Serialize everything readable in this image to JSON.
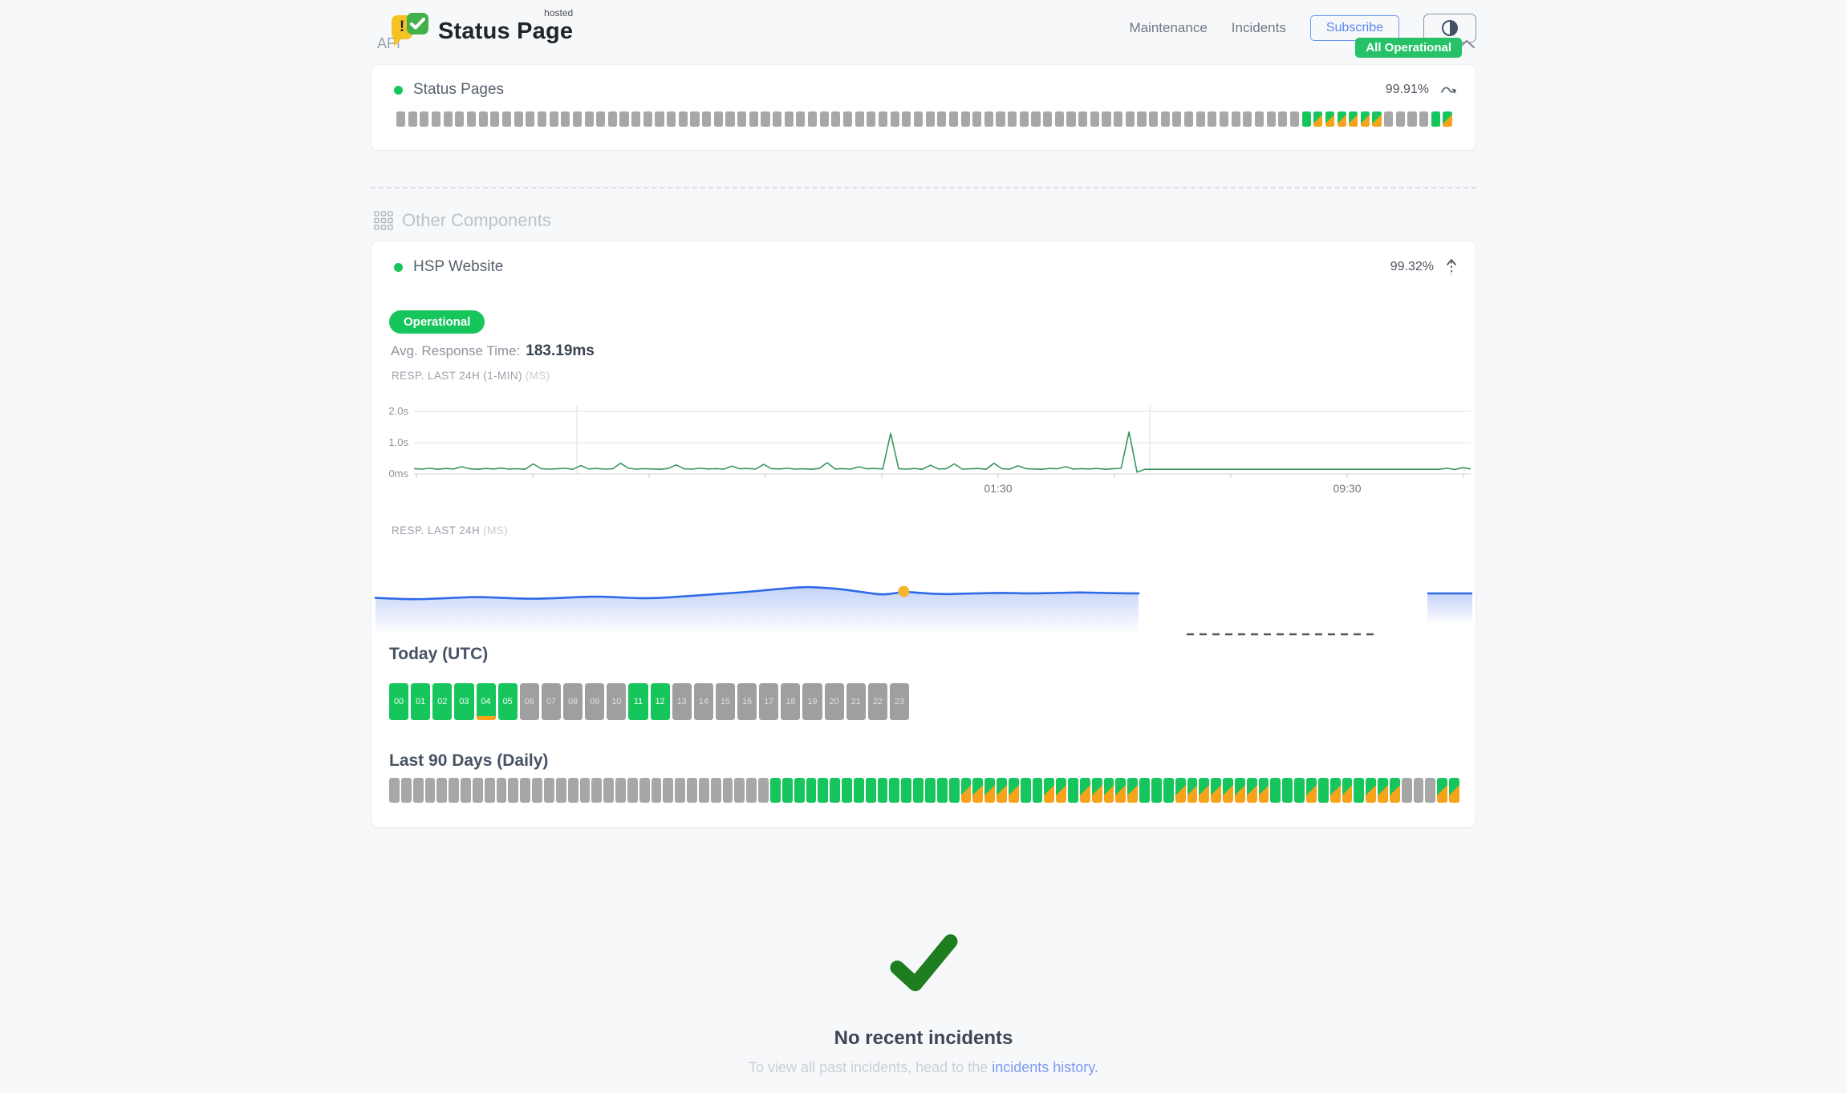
{
  "header": {
    "brand": {
      "name": "Status Page",
      "superscript": "hosted"
    },
    "nav": [
      {
        "label": "Maintenance"
      },
      {
        "label": "Incidents"
      }
    ],
    "subscribe_label": "Subscribe",
    "status_badge": "All Operational"
  },
  "colors": {
    "page_bg": "#f7f8fa",
    "green": "#17c55d",
    "orange": "#f7a21b",
    "gray_bar": "#a7a7a7",
    "blue_line": "#2e6ae8",
    "green_line": "#39965f",
    "marker_yellow": "#f5b62e",
    "check_green": "#1e7d1f",
    "badge_green": "#27c267",
    "link_blue": "#7e99f3"
  },
  "bar_states": {
    "E": "no-data",
    "U": "operational",
    "D": "degraded"
  },
  "api_section": {
    "title": "API",
    "component": {
      "name": "Status Pages",
      "uptime_pct": "99.91%",
      "bars": "EEEEEEEEEEEEEEEEEEEEEEEEEEEEEEEEEEEEEEEEEEEEEEEEEEEEEEEEEEEEEEEEEEEEEEEEEEEEEUDDDDDDEEEEUD"
    }
  },
  "other_section": {
    "title": "Other Components",
    "component": {
      "name": "HSP Website",
      "uptime_pct": "99.32%",
      "status": "Operational",
      "avg_label": "Avg. Response Time:",
      "avg_value": "183.19ms"
    },
    "today": {
      "title": "Today (UTC)",
      "hours": [
        {
          "label": "00",
          "state": "up"
        },
        {
          "label": "01",
          "state": "up"
        },
        {
          "label": "02",
          "state": "up"
        },
        {
          "label": "03",
          "state": "up"
        },
        {
          "label": "04",
          "state": "up",
          "degraded_strip": true
        },
        {
          "label": "05",
          "state": "up"
        },
        {
          "label": "06",
          "state": "empty"
        },
        {
          "label": "07",
          "state": "empty"
        },
        {
          "label": "08",
          "state": "empty"
        },
        {
          "label": "09",
          "state": "empty"
        },
        {
          "label": "10",
          "state": "empty"
        },
        {
          "label": "11",
          "state": "up"
        },
        {
          "label": "12",
          "state": "up"
        },
        {
          "label": "13",
          "state": "empty"
        },
        {
          "label": "14",
          "state": "empty"
        },
        {
          "label": "15",
          "state": "empty"
        },
        {
          "label": "16",
          "state": "empty"
        },
        {
          "label": "17",
          "state": "empty"
        },
        {
          "label": "18",
          "state": "empty"
        },
        {
          "label": "19",
          "state": "empty"
        },
        {
          "label": "20",
          "state": "empty"
        },
        {
          "label": "21",
          "state": "empty"
        },
        {
          "label": "22",
          "state": "empty"
        },
        {
          "label": "23",
          "state": "empty"
        }
      ]
    },
    "last90": {
      "title": "Last 90 Days (Daily)",
      "bars": "EEEEEEEEEEEEEEEEEEEEEEEEEEEEEEEEUUUUUUUUUUUUUUUUDDDDDUUDDUDDDDDUUUDDDDDDDDUUUDUDDUDDDEEEDD"
    }
  },
  "incidents": {
    "title": "No recent incidents",
    "subtitle_prefix": "To view all past incidents, head to the ",
    "link_text": "incidents history."
  },
  "chart_data": [
    {
      "type": "line",
      "title": "RESP. LAST 24H (1-MIN)",
      "unit": "(MS)",
      "color": "#39965f",
      "ylim_ms": [
        0,
        2300
      ],
      "y_ticks": [
        "2.0s",
        "1.0s",
        "0ms"
      ],
      "x_ticks": [
        {
          "label": "01:30",
          "f": 0.553
        },
        {
          "label": "09:30",
          "f": 0.883
        }
      ],
      "values_ms": [
        170,
        155,
        180,
        150,
        175,
        160,
        230,
        165,
        150,
        175,
        160,
        185,
        155,
        170,
        150,
        320,
        170,
        155,
        165,
        180,
        150,
        270,
        160,
        175,
        155,
        165,
        340,
        180,
        155,
        170,
        160,
        150,
        175,
        290,
        165,
        155,
        180,
        160,
        170,
        155,
        250,
        165,
        175,
        155,
        305,
        170,
        160,
        180,
        155,
        165,
        150,
        175,
        360,
        160,
        170,
        155,
        230,
        165,
        175,
        160,
        1300,
        165,
        155,
        175,
        150,
        280,
        160,
        170,
        320,
        155,
        165,
        175,
        150,
        340,
        165,
        155,
        260,
        170,
        160,
        150,
        175,
        165,
        230,
        155,
        170,
        160,
        175,
        150,
        165,
        180,
        1340,
        60,
        150,
        150,
        150,
        150,
        150,
        150,
        150,
        150,
        150,
        150,
        150,
        150,
        150,
        150,
        150,
        150,
        150,
        150,
        150,
        150,
        150,
        150,
        150,
        150,
        150,
        150,
        150,
        150,
        150,
        150,
        150,
        150,
        150,
        150,
        150,
        150,
        150,
        150,
        180,
        140,
        200,
        160
      ]
    },
    {
      "type": "area",
      "title": "RESP. LAST 24H",
      "unit": "(MS)",
      "color": "#2e6ae8",
      "marker_color": "#f5b62e",
      "marker_index": 27,
      "segment_a_ms": [
        186,
        184,
        183,
        184,
        186,
        188,
        187,
        185,
        184,
        185,
        187,
        189,
        188,
        186,
        185,
        187,
        190,
        193,
        196,
        199,
        203,
        207,
        210,
        208,
        204,
        198,
        192,
        200,
        196,
        194,
        195,
        196,
        197,
        196,
        196,
        197,
        198,
        197,
        196,
        196
      ],
      "gap_dashed": true,
      "segment_b_ms": [
        199,
        199,
        199,
        199
      ]
    }
  ]
}
